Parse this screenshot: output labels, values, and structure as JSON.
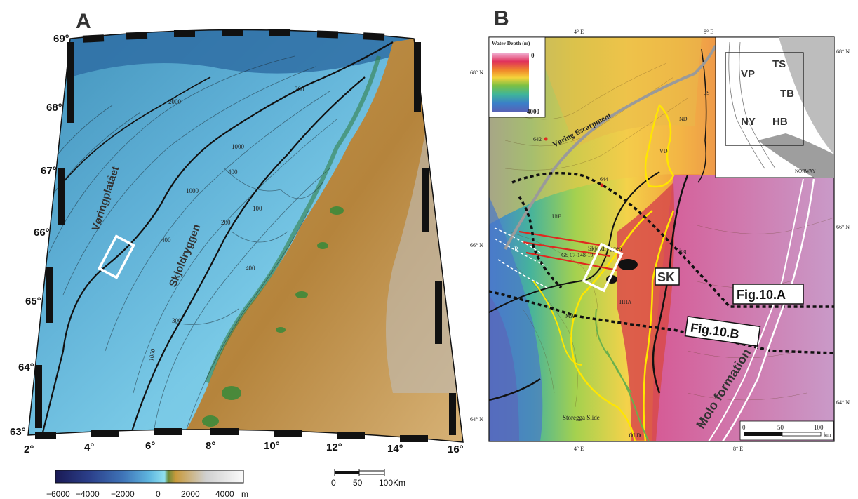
{
  "panelA": {
    "letter": "A",
    "lat_labels": [
      "69°",
      "68°",
      "67°",
      "66°",
      "65°",
      "64°",
      "63°"
    ],
    "lon_labels": [
      "2°",
      "4°",
      "6°",
      "8°",
      "10°",
      "12°",
      "14°",
      "16°"
    ],
    "place_labels": [
      "Vøringplatået",
      "Skjoldryggen"
    ],
    "contour_labels": [
      "2000",
      "1000",
      "400",
      "1000",
      "200",
      "200",
      "100",
      "400",
      "300",
      "400",
      "1000"
    ],
    "colorbar": {
      "ticks": [
        "−6000",
        "−4000",
        "−2000",
        "0",
        "2000",
        "4000"
      ],
      "unit": "m"
    },
    "scalebar": {
      "ticks": [
        "0",
        "50",
        "100Km"
      ]
    }
  },
  "panelB": {
    "letter": "B",
    "top_lon_labels": [
      "4° E",
      "8° E"
    ],
    "bottom_lon_labels": [
      "4° E",
      "8° E"
    ],
    "left_lat_labels": [
      "68° N",
      "66° N",
      "64° N"
    ],
    "right_lat_labels": [
      "68° N",
      "66° N",
      "64° N"
    ],
    "legend": {
      "title": "Water Depth (m)",
      "min": "0",
      "max": "4000"
    },
    "inset": {
      "labels": [
        "VP",
        "TS",
        "TB",
        "NY",
        "HB"
      ],
      "country": "NORWAY"
    },
    "site_labels": [
      "642",
      "644"
    ],
    "region_labels": [
      "Vøring Escarpment",
      "ND",
      "VD",
      "UiE",
      "Skjoldryggen",
      "GS 07-148-19",
      "MA",
      "HHA",
      "Storegga Slide",
      "OLD",
      "JS",
      "R",
      "SK",
      "Molo formation",
      "iuq"
    ],
    "callouts": [
      "Fig.10.A",
      "Fig.10.B"
    ],
    "scalebar": {
      "ticks": [
        "0",
        "50",
        "100"
      ],
      "unit": "km"
    }
  },
  "colors": {
    "frame_black": "#111111",
    "study_box": "#ffffff",
    "yellow_outline": "#ffe600",
    "green_outline": "#6ab04c",
    "red_lines": "#e0281f",
    "grey_line": "#9a9a9a"
  }
}
